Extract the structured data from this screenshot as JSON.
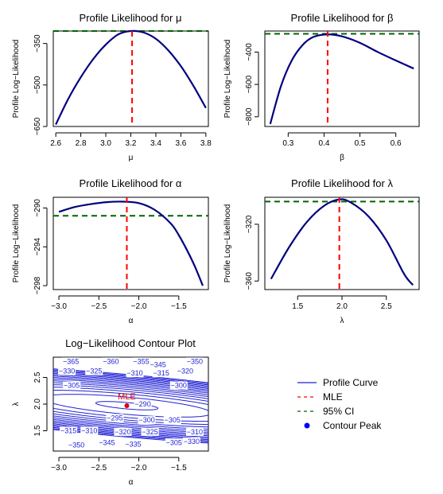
{
  "colors": {
    "curve": "#000080",
    "mle": "#ff0000",
    "ci": "#006400",
    "contour": "#1f1fd6",
    "peak": "#0000ff"
  },
  "legend": {
    "items": [
      {
        "label": "Profile Curve",
        "style": "solid",
        "color": "#1f1fd6"
      },
      {
        "label": "MLE",
        "style": "dashed",
        "color": "#ff0000"
      },
      {
        "label": "95% CI",
        "style": "dashed",
        "color": "#006400"
      },
      {
        "label": "Contour Peak",
        "style": "point",
        "color": "#0000ff"
      }
    ]
  },
  "chart_data": [
    {
      "type": "line",
      "title": "Profile Likelihood for μ",
      "xlabel": "μ",
      "ylabel": "Profile Log−Likelihood",
      "xlim": [
        2.58,
        3.82
      ],
      "ylim": [
        -650,
        -305
      ],
      "xticks": [
        2.6,
        2.8,
        3.0,
        3.2,
        3.4,
        3.6,
        3.8
      ],
      "xtick_labels": [
        "2.6",
        "2.8",
        "3.0",
        "3.2",
        "3.4",
        "3.6",
        "3.8"
      ],
      "yticks": [
        -650,
        -500,
        -350
      ],
      "ytick_labels": [
        "−650",
        "−500",
        "−350"
      ],
      "x": [
        2.6,
        2.7,
        2.8,
        2.9,
        3.0,
        3.1,
        3.2,
        3.3,
        3.4,
        3.5,
        3.6,
        3.7,
        3.8
      ],
      "y": [
        -643,
        -550,
        -472,
        -406,
        -354,
        -317,
        -305,
        -310,
        -333,
        -375,
        -432,
        -503,
        -583
      ],
      "mle_x": 3.21,
      "ci_y": -305
    },
    {
      "type": "line",
      "title": "Profile Likelihood for β",
      "xlabel": "β",
      "ylabel": "Profile Log−Likelihood",
      "xlim": [
        0.235,
        0.665
      ],
      "ylim": [
        -860,
        -270
      ],
      "xticks": [
        0.3,
        0.4,
        0.5,
        0.6
      ],
      "xtick_labels": [
        "0.3",
        "0.4",
        "0.5",
        "0.6"
      ],
      "yticks": [
        -800,
        -600,
        -400
      ],
      "ytick_labels": [
        "−800",
        "−600",
        "−400"
      ],
      "x": [
        0.25,
        0.28,
        0.31,
        0.34,
        0.37,
        0.41,
        0.45,
        0.5,
        0.55,
        0.6,
        0.65
      ],
      "y": [
        -845,
        -610,
        -452,
        -357,
        -307,
        -291,
        -303,
        -343,
        -400,
        -452,
        -502
      ],
      "mle_x": 0.41,
      "ci_y": -287
    },
    {
      "type": "line",
      "title": "Profile Likelihood for α",
      "xlabel": "α",
      "ylabel": "Profile Log−Likelihood",
      "xlim": [
        -3.07,
        -1.13
      ],
      "ylim": [
        -298.4,
        -288.9
      ],
      "xticks": [
        -3.0,
        -2.5,
        -2.0,
        -1.5
      ],
      "xtick_labels": [
        "−3.0",
        "−2.5",
        "−2.0",
        "−1.5"
      ],
      "yticks": [
        -298,
        -294,
        -290
      ],
      "ytick_labels": [
        "−298",
        "−294",
        "−290"
      ],
      "x": [
        -3.0,
        -2.8,
        -2.6,
        -2.4,
        -2.2,
        -2.0,
        -1.8,
        -1.6,
        -1.5,
        -1.4,
        -1.3,
        -1.2
      ],
      "y": [
        -290.4,
        -289.9,
        -289.6,
        -289.4,
        -289.35,
        -289.5,
        -290.2,
        -291.6,
        -292.8,
        -294.3,
        -296.0,
        -298.0
      ],
      "mle_x": -2.15,
      "ci_y": -290.8
    },
    {
      "type": "line",
      "title": "Profile Likelihood for λ",
      "xlabel": "λ",
      "ylabel": "Profile Log−Likelihood",
      "xlim": [
        1.13,
        2.87
      ],
      "ylim": [
        -366,
        -301
      ],
      "xticks": [
        1.5,
        2.0,
        2.5
      ],
      "xtick_labels": [
        "1.5",
        "2.0",
        "2.5"
      ],
      "yticks": [
        -360,
        -320
      ],
      "ytick_labels": [
        "−360",
        "−320"
      ],
      "x": [
        1.2,
        1.4,
        1.6,
        1.8,
        1.97,
        2.1,
        2.3,
        2.5,
        2.7,
        2.8
      ],
      "y": [
        -358.5,
        -336.5,
        -318.7,
        -306.9,
        -302.5,
        -304.7,
        -314.5,
        -331.3,
        -355.0,
        -362.8
      ],
      "mle_x": 1.97,
      "ci_y": -304
    },
    {
      "type": "contour",
      "title": "Log−Likelihood Contour Plot",
      "xlabel": "α",
      "ylabel": "λ",
      "xlim": [
        -3.07,
        -1.13
      ],
      "ylim": [
        1.12,
        2.88
      ],
      "xticks": [
        -3.0,
        -2.5,
        -2.0,
        -1.5
      ],
      "xtick_labels": [
        "−3.0",
        "−2.5",
        "−2.0",
        "−1.5"
      ],
      "yticks": [
        1.5,
        2.0,
        2.5
      ],
      "ytick_labels": [
        "1.5",
        "2.0",
        "2.5"
      ],
      "mle_point": {
        "x": -2.15,
        "y": 1.97,
        "label": "MLE"
      },
      "levels": [
        -290,
        -295,
        -300,
        -305,
        -310,
        -315,
        -320,
        -325,
        -330,
        -335,
        -340,
        -345,
        -350,
        -355,
        -360,
        -365
      ],
      "labels": [
        {
          "text": "−365",
          "x": -2.85,
          "y": 2.8
        },
        {
          "text": "−360",
          "x": -2.35,
          "y": 2.8
        },
        {
          "text": "−355",
          "x": -1.97,
          "y": 2.8
        },
        {
          "text": "−345",
          "x": -1.76,
          "y": 2.74
        },
        {
          "text": "−350",
          "x": -1.3,
          "y": 2.8
        },
        {
          "text": "−330",
          "x": -2.9,
          "y": 2.62
        },
        {
          "text": "−325",
          "x": -2.56,
          "y": 2.62
        },
        {
          "text": "−310",
          "x": -2.05,
          "y": 2.58
        },
        {
          "text": "−315",
          "x": -1.72,
          "y": 2.58
        },
        {
          "text": "−320",
          "x": -1.42,
          "y": 2.62
        },
        {
          "text": "−305",
          "x": -2.84,
          "y": 2.35
        },
        {
          "text": "−300",
          "x": -1.5,
          "y": 2.35
        },
        {
          "text": "−290",
          "x": -1.95,
          "y": 2.0
        },
        {
          "text": "−295",
          "x": -2.3,
          "y": 1.74
        },
        {
          "text": "−300",
          "x": -1.9,
          "y": 1.7
        },
        {
          "text": "−305",
          "x": -1.58,
          "y": 1.7
        },
        {
          "text": "−315",
          "x": -2.88,
          "y": 1.5
        },
        {
          "text": "−310",
          "x": -2.62,
          "y": 1.5
        },
        {
          "text": "−320",
          "x": -2.2,
          "y": 1.48
        },
        {
          "text": "−325",
          "x": -1.86,
          "y": 1.48
        },
        {
          "text": "−310",
          "x": -1.3,
          "y": 1.48
        },
        {
          "text": "−350",
          "x": -2.78,
          "y": 1.23
        },
        {
          "text": "−345",
          "x": -2.4,
          "y": 1.28
        },
        {
          "text": "−335",
          "x": -2.07,
          "y": 1.25
        },
        {
          "text": "−305",
          "x": -1.56,
          "y": 1.28
        },
        {
          "text": "−330",
          "x": -1.34,
          "y": 1.3
        }
      ]
    }
  ]
}
